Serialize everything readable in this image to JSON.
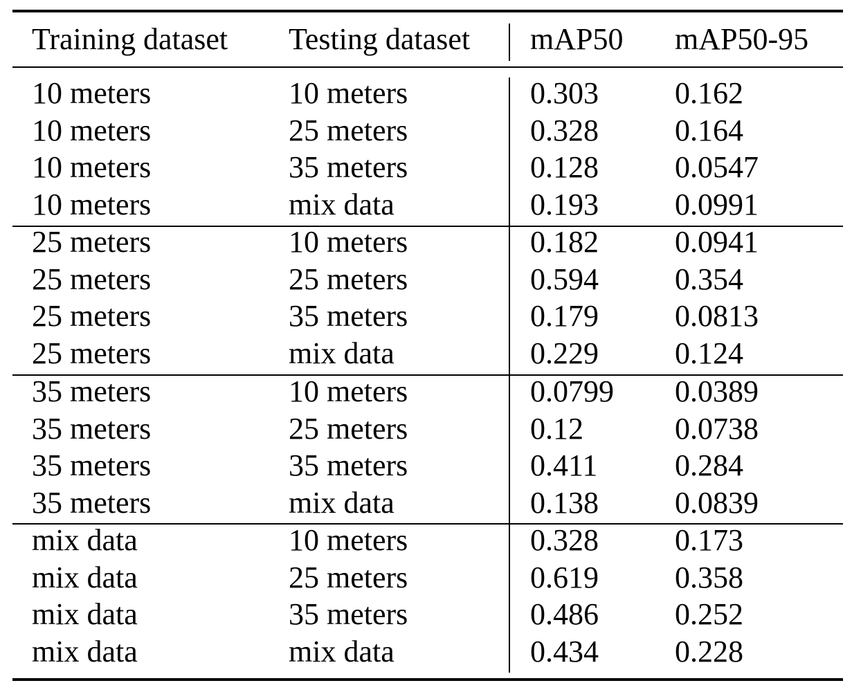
{
  "table": {
    "headers": [
      "Training dataset",
      "Testing dataset",
      "mAP50",
      "mAP50-95"
    ],
    "groups": [
      {
        "rows": [
          [
            "10 meters",
            "10 meters",
            "0.303",
            "0.162"
          ],
          [
            "10 meters",
            "25 meters",
            "0.328",
            "0.164"
          ],
          [
            "10 meters",
            "35 meters",
            "0.128",
            "0.0547"
          ],
          [
            "10 meters",
            "mix data",
            "0.193",
            "0.0991"
          ]
        ]
      },
      {
        "rows": [
          [
            "25 meters",
            "10 meters",
            "0.182",
            "0.0941"
          ],
          [
            "25 meters",
            "25 meters",
            "0.594",
            "0.354"
          ],
          [
            "25 meters",
            "35 meters",
            "0.179",
            "0.0813"
          ],
          [
            "25 meters",
            "mix data",
            "0.229",
            "0.124"
          ]
        ]
      },
      {
        "rows": [
          [
            "35 meters",
            "10 meters",
            "0.0799",
            "0.0389"
          ],
          [
            "35 meters",
            "25 meters",
            "0.12",
            "0.0738"
          ],
          [
            "35 meters",
            "35 meters",
            "0.411",
            "0.284"
          ],
          [
            "35 meters",
            "mix data",
            "0.138",
            "0.0839"
          ]
        ]
      },
      {
        "rows": [
          [
            "mix data",
            "10 meters",
            "0.328",
            "0.173"
          ],
          [
            "mix data",
            "25 meters",
            "0.619",
            "0.358"
          ],
          [
            "mix data",
            "35 meters",
            "0.486",
            "0.252"
          ],
          [
            "mix data",
            "mix data",
            "0.434",
            "0.228"
          ]
        ]
      }
    ]
  }
}
